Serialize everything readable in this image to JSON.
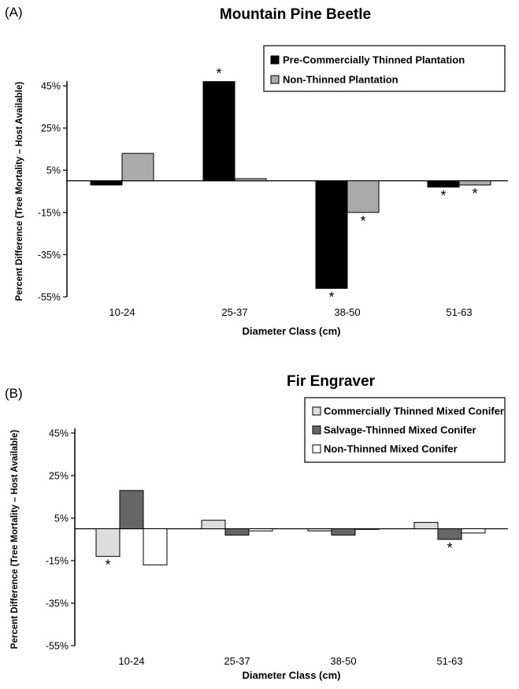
{
  "chart_data": [
    {
      "panel_label": "(A)",
      "type": "bar",
      "title": "Mountain Pine Beetle",
      "xlabel": "Diameter Class (cm)",
      "ylabel": "Percent Difference (Tree Mortality – Host Available)",
      "categories": [
        "10-24",
        "25-37",
        "38-50",
        "51-63"
      ],
      "ylim": [
        -55,
        45
      ],
      "yticks": [
        "45%",
        "25%",
        "5%",
        "-15%",
        "-35%",
        "-55%"
      ],
      "ytick_values": [
        45,
        25,
        5,
        -15,
        -35,
        -55
      ],
      "legend_position": "top-right",
      "series": [
        {
          "name": "Pre-Commercially Thinned Plantation",
          "color": "#000000",
          "values": [
            -2,
            47,
            -51,
            -3
          ],
          "significant": [
            false,
            true,
            true,
            true
          ]
        },
        {
          "name": "Non-Thinned Plantation",
          "color": "#aaaaaa",
          "values": [
            13,
            1,
            -15,
            -2
          ],
          "significant": [
            false,
            false,
            true,
            true
          ]
        }
      ],
      "significance_marker": "*"
    },
    {
      "panel_label": "(B)",
      "type": "bar",
      "title": "Fir Engraver",
      "xlabel": "Diameter Class (cm)",
      "ylabel": "Percent Difference (Tree Mortality – Host Available)",
      "categories": [
        "10-24",
        "25-37",
        "38-50",
        "51-63"
      ],
      "ylim": [
        -55,
        45
      ],
      "yticks": [
        "45%",
        "25%",
        "5%",
        "-15%",
        "-35%",
        "-55%"
      ],
      "ytick_values": [
        45,
        25,
        5,
        -15,
        -35,
        -55
      ],
      "legend_position": "top-right",
      "series": [
        {
          "name": "Commercially Thinned Mixed Conifer",
          "color": "#dddddd",
          "values": [
            -13,
            4,
            -1,
            3
          ],
          "significant": [
            true,
            false,
            false,
            false
          ]
        },
        {
          "name": "Salvage-Thinned Mixed Conifer",
          "color": "#666666",
          "values": [
            18,
            -3,
            -3,
            -5
          ],
          "significant": [
            false,
            false,
            false,
            true
          ]
        },
        {
          "name": "Non-Thinned Mixed Conifer",
          "color": "#ffffff",
          "values": [
            -17,
            -1,
            0,
            -2
          ],
          "significant": [
            false,
            false,
            false,
            false
          ]
        }
      ],
      "significance_marker": "*"
    }
  ]
}
